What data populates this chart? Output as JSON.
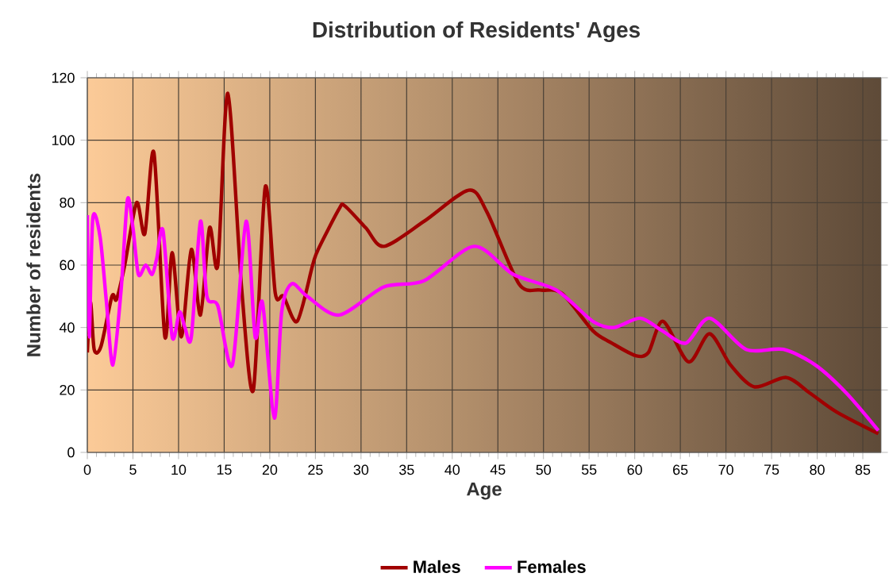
{
  "chart_data": {
    "type": "line",
    "title": "Distribution of Residents' Ages",
    "xlabel": "Age",
    "ylabel": "Number of residents",
    "xlim": [
      0,
      87
    ],
    "ylim": [
      0,
      120
    ],
    "xticks": [
      0,
      5,
      10,
      15,
      20,
      25,
      30,
      35,
      40,
      45,
      50,
      55,
      60,
      65,
      70,
      75,
      80,
      85
    ],
    "yticks": [
      0,
      20,
      40,
      60,
      80,
      100,
      120
    ],
    "grid": true,
    "legend": "bottom",
    "line_style": "solid",
    "marker": "none",
    "series": [
      {
        "name": "Males",
        "color": "#a00000",
        "x": [
          0,
          0.35,
          0.75,
          1.5,
          2.7,
          3.2,
          4.1,
          5.4,
          6.3,
          7.3,
          8.5,
          9.3,
          10.3,
          11.4,
          12.4,
          13.4,
          14.3,
          15.4,
          16.9,
          18.2,
          19.5,
          20.6,
          21.5,
          23.0,
          24.7,
          25.3,
          27.6,
          28.2,
          30.5,
          32.5,
          36.9,
          41.8,
          43.8,
          47.3,
          49.6,
          52.0,
          55.4,
          57.5,
          60.1,
          61.5,
          63.1,
          65.9,
          68.2,
          70.5,
          73.1,
          76.6,
          79.2,
          82.1,
          86.7
        ],
        "values": [
          32,
          48,
          33,
          34,
          50,
          49,
          60,
          80,
          70,
          96,
          37,
          64,
          37,
          65,
          44,
          72,
          60,
          115,
          53,
          20,
          85,
          51,
          50,
          42,
          60,
          65,
          78,
          79,
          72,
          66,
          74,
          84,
          77,
          54,
          52,
          51,
          39,
          35,
          31,
          32,
          42,
          29,
          38,
          28,
          21,
          24,
          19,
          13,
          6
        ]
      },
      {
        "name": "Females",
        "color": "#ff00ff",
        "x": [
          0,
          0.2,
          0.6,
          1.4,
          2.1,
          2.8,
          3.7,
          4.4,
          5.0,
          5.6,
          6.4,
          7.1,
          7.6,
          8.3,
          9.3,
          10.1,
          10.7,
          11.4,
          12.4,
          13.1,
          14.3,
          15.9,
          17.4,
          18.4,
          19.2,
          20.5,
          21.3,
          22.4,
          24.1,
          27.6,
          32.5,
          36.9,
          42.4,
          46.7,
          51.4,
          55.4,
          57.7,
          60.6,
          63.0,
          65.6,
          68.2,
          72.2,
          76.3,
          79.8,
          83.2,
          86.7
        ],
        "values": [
          76,
          37,
          75,
          69,
          48,
          28,
          52,
          81,
          72,
          57,
          60,
          57,
          62,
          71,
          37,
          45,
          40,
          37,
          74,
          50,
          47,
          28,
          74,
          37,
          48,
          11,
          45,
          54,
          50,
          44,
          53,
          55,
          66,
          57,
          52,
          42,
          40,
          43,
          39,
          35,
          43,
          33,
          33,
          28,
          19,
          7
        ]
      }
    ]
  }
}
